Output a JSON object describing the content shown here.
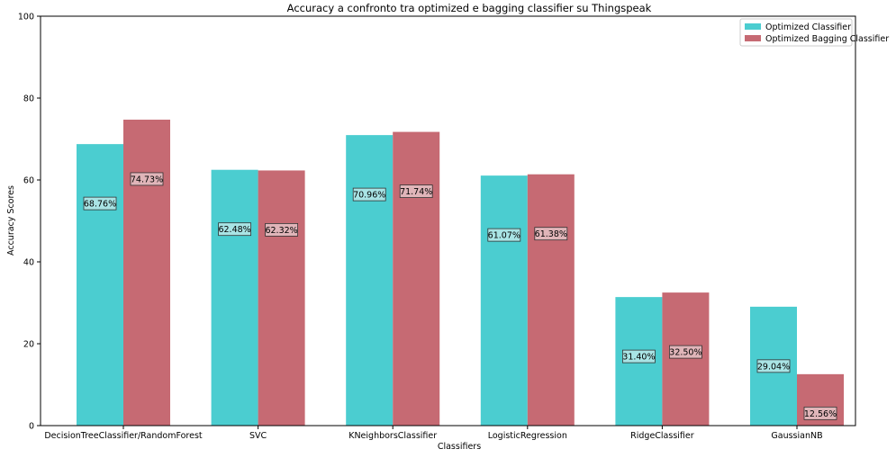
{
  "chart_data": {
    "type": "bar",
    "title": "Accuracy a confronto tra optimized e bagging classifier su Thingspeak",
    "xlabel": "Classifiers",
    "ylabel": "Accuracy Scores",
    "ylim": [
      0,
      100
    ],
    "yticks": [
      "0",
      "20",
      "40",
      "60",
      "80",
      "100"
    ],
    "grid": false,
    "legend_position": "top-right",
    "categories": [
      "DecisionTreeClassifier/RandomForest",
      "SVC",
      "KNeighborsClassifier",
      "LogisticRegression",
      "RidgeClassifier",
      "GaussianNB"
    ],
    "series": [
      {
        "name": "Optimized Classifier",
        "color": "#4bcdd0",
        "values": [
          68.76,
          62.48,
          70.96,
          61.07,
          31.4,
          29.04
        ],
        "labels": [
          "68.76%",
          "62.48%",
          "70.96%",
          "61.07%",
          "31.40%",
          "29.04%"
        ]
      },
      {
        "name": "Optimized Bagging Classifier",
        "color": "#c66a73",
        "values": [
          74.73,
          62.32,
          71.74,
          61.38,
          32.5,
          12.56
        ],
        "labels": [
          "74.73%",
          "62.32%",
          "71.74%",
          "61.38%",
          "32.50%",
          "12.56%"
        ]
      }
    ]
  }
}
